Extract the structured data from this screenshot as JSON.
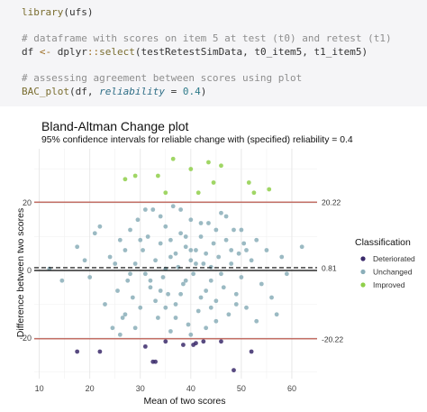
{
  "code": {
    "line1_fn": "library",
    "line1_arg": "(ufs)",
    "line2_comment": "# dataframe with scores on item 5 at test (t0) and retest (t1)",
    "line3_var": "df ",
    "line3_op": "<-",
    "line3_pkg": " dplyr",
    "line3_sep": "::",
    "line3_fn": "select",
    "line3_args": "(testRetestSimData, t0_item5, t1_item5)",
    "line4_comment": "# assessing agreement between scores using plot",
    "line5_fn": "BAC_plot",
    "line5_open": "(df, ",
    "line5_argname": "reliability",
    "line5_eq": " = ",
    "line5_num": "0.4",
    "line5_close": ")"
  },
  "chart_data": {
    "type": "scatter",
    "title": "Bland-Altman Change plot",
    "subtitle": "95% confidence intervals for reliable change with (specified) reliability = 0.4",
    "xlabel": "Mean of two scores",
    "ylabel": "Difference between two scores",
    "xlim": [
      9,
      65
    ],
    "ylim": [
      -32,
      36
    ],
    "x_ticks": [
      10,
      20,
      30,
      40,
      50,
      60
    ],
    "y_ticks": [
      -20,
      0,
      20
    ],
    "reference_lines": [
      {
        "value": 20.22,
        "label": "20.22",
        "color": "#b5473a",
        "style": "solid"
      },
      {
        "value": 0.81,
        "label": "0.81",
        "color": "#000000",
        "style": "dashed"
      },
      {
        "value": 0,
        "label": "",
        "color": "#000000",
        "style": "solid"
      },
      {
        "value": -20.22,
        "label": "-20.22",
        "color": "#b5473a",
        "style": "solid"
      }
    ],
    "legend": {
      "title": "Classification",
      "position": "right",
      "entries": [
        {
          "label": "Deteriorated",
          "color": "#3b2a6b"
        },
        {
          "label": "Unchanged",
          "color": "#8aaeb9"
        },
        {
          "label": "Improved",
          "color": "#8fcf4a"
        }
      ]
    },
    "grid": true,
    "series": [
      {
        "name": "Deteriorated",
        "color": "#3b2a6b",
        "points": [
          [
            17.5,
            -24
          ],
          [
            22,
            -24
          ],
          [
            31,
            -22.5
          ],
          [
            32.5,
            -27
          ],
          [
            33,
            -27
          ],
          [
            35,
            -21
          ],
          [
            38.5,
            -22
          ],
          [
            40.5,
            -22
          ],
          [
            42.5,
            -21
          ],
          [
            46,
            -21
          ],
          [
            48.5,
            -29.5
          ],
          [
            52,
            -24
          ],
          [
            41,
            -21.5
          ]
        ]
      },
      {
        "name": "Improved",
        "color": "#8fcf4a",
        "points": [
          [
            27,
            27
          ],
          [
            29,
            28
          ],
          [
            33.5,
            28
          ],
          [
            35,
            23
          ],
          [
            36.5,
            33
          ],
          [
            40,
            30
          ],
          [
            41.5,
            23
          ],
          [
            43.5,
            32
          ],
          [
            44.5,
            26
          ],
          [
            46,
            31
          ],
          [
            51.5,
            26
          ],
          [
            52.5,
            23
          ],
          [
            55.5,
            24
          ]
        ]
      },
      {
        "name": "Unchanged",
        "color": "#8aaeb9",
        "points": [
          [
            12,
            0.5
          ],
          [
            14.5,
            -3
          ],
          [
            17.5,
            7
          ],
          [
            19,
            3
          ],
          [
            20,
            -2
          ],
          [
            21,
            11
          ],
          [
            22,
            13
          ],
          [
            23,
            -10
          ],
          [
            24,
            4
          ],
          [
            24.5,
            -17
          ],
          [
            25,
            2
          ],
          [
            25.5,
            -6
          ],
          [
            26,
            9
          ],
          [
            26.5,
            -14
          ],
          [
            27,
            6
          ],
          [
            27.5,
            -3
          ],
          [
            28,
            12
          ],
          [
            28.5,
            -8
          ],
          [
            29,
            2
          ],
          [
            29.5,
            15
          ],
          [
            30,
            -11
          ],
          [
            30.5,
            6
          ],
          [
            31,
            -1
          ],
          [
            31.5,
            10
          ],
          [
            32,
            -5
          ],
          [
            32.5,
            18
          ],
          [
            33,
            3
          ],
          [
            33.5,
            -14
          ],
          [
            34,
            8
          ],
          [
            34.5,
            -2
          ],
          [
            35,
            13
          ],
          [
            35.5,
            -7
          ],
          [
            36,
            4
          ],
          [
            36.5,
            19
          ],
          [
            37,
            -10
          ],
          [
            37.5,
            1
          ],
          [
            38,
            11
          ],
          [
            38.5,
            -4
          ],
          [
            39,
            7
          ],
          [
            39.5,
            -16
          ],
          [
            40,
            15
          ],
          [
            40.5,
            -1
          ],
          [
            41,
            6
          ],
          [
            41.5,
            -12
          ],
          [
            42,
            10
          ],
          [
            42.5,
            2
          ],
          [
            43,
            -6
          ],
          [
            43.5,
            14
          ],
          [
            44,
            -3
          ],
          [
            44.5,
            8
          ],
          [
            45,
            -9
          ],
          [
            45.5,
            4
          ],
          [
            46,
            17
          ],
          [
            46.5,
            -5
          ],
          [
            47,
            9
          ],
          [
            47.5,
            -13
          ],
          [
            48,
            2
          ],
          [
            48.5,
            12
          ],
          [
            49,
            -7
          ],
          [
            49.5,
            5
          ],
          [
            50,
            -2
          ],
          [
            50.5,
            8
          ],
          [
            51,
            -11
          ],
          [
            52,
            3
          ],
          [
            53,
            9
          ],
          [
            54,
            -4
          ],
          [
            55,
            6
          ],
          [
            56,
            -8
          ],
          [
            57,
            -13
          ],
          [
            58,
            4
          ],
          [
            59,
            -1
          ],
          [
            62,
            7
          ],
          [
            26,
            -19
          ],
          [
            29,
            -17
          ],
          [
            31,
            18
          ],
          [
            34,
            16
          ],
          [
            36,
            -18
          ],
          [
            38,
            18
          ],
          [
            40,
            -19
          ],
          [
            43,
            -17
          ],
          [
            45,
            -15
          ],
          [
            47,
            16
          ],
          [
            33,
            -9
          ],
          [
            35,
            0.5
          ],
          [
            37,
            5
          ],
          [
            39,
            -3
          ],
          [
            41,
            2
          ],
          [
            42,
            -8
          ],
          [
            44,
            1
          ],
          [
            46,
            -1
          ],
          [
            48,
            6
          ],
          [
            50,
            12
          ],
          [
            30,
            9
          ],
          [
            32,
            -3
          ],
          [
            36,
            9
          ],
          [
            38,
            -7
          ],
          [
            40,
            3
          ],
          [
            42,
            14
          ],
          [
            44,
            -11
          ],
          [
            28,
            -1
          ],
          [
            34,
            -6
          ],
          [
            39,
            10
          ],
          [
            37,
            -14
          ],
          [
            45,
            12
          ],
          [
            49,
            -10
          ],
          [
            51,
            6
          ],
          [
            27,
            -13
          ],
          [
            53,
            -15
          ],
          [
            40,
            6
          ],
          [
            43,
            5
          ],
          [
            35,
            -11
          ]
        ]
      }
    ]
  }
}
